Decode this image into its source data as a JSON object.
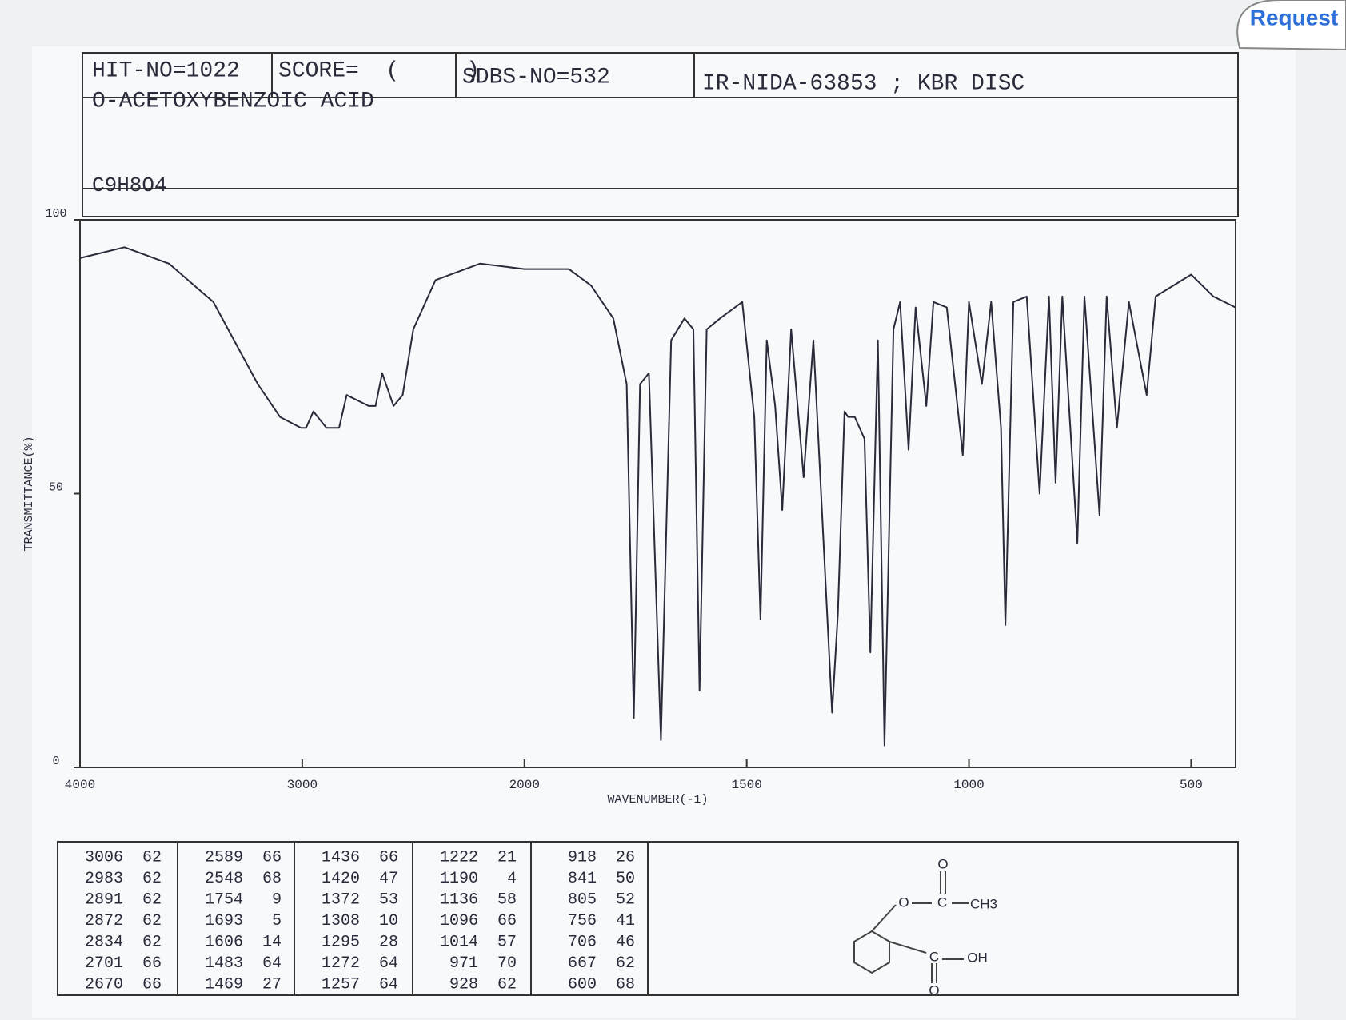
{
  "header": {
    "hit_no": "HIT-NO=1022",
    "score": "SCORE=  (     )",
    "sdbs_no": "SDBS-NO=532",
    "method": "IR-NIDA-63853 ; KBR DISC",
    "name": "O-ACETOXYBENZOIC ACID",
    "formula": "C9H8O4"
  },
  "button": "Request",
  "chart_data": {
    "type": "line",
    "x_label": "WAVENUMBER(-1)",
    "y_label": "TRANSMITTANCE(%)",
    "xlim": [
      4000,
      400
    ],
    "x_expand_below": 2000,
    "xticks": [
      4000,
      3000,
      2000,
      1500,
      1000,
      500
    ],
    "ylim": [
      0,
      100
    ],
    "yticks": [
      0,
      50,
      100
    ],
    "series": [
      {
        "name": "O-ACETOXYBENZOIC ACID",
        "color": "#2a2a3a",
        "x": [
          4000,
          3800,
          3600,
          3400,
          3200,
          3100,
          3006,
          2983,
          2950,
          2891,
          2872,
          2834,
          2800,
          2701,
          2670,
          2640,
          2589,
          2548,
          2500,
          2400,
          2200,
          2000,
          1900,
          1850,
          1800,
          1770,
          1754,
          1740,
          1720,
          1693,
          1670,
          1640,
          1620,
          1606,
          1590,
          1560,
          1510,
          1483,
          1469,
          1455,
          1436,
          1420,
          1400,
          1372,
          1350,
          1308,
          1295,
          1280,
          1272,
          1257,
          1235,
          1222,
          1205,
          1190,
          1170,
          1155,
          1136,
          1120,
          1096,
          1080,
          1050,
          1014,
          1000,
          971,
          950,
          928,
          918,
          900,
          870,
          841,
          820,
          805,
          790,
          756,
          740,
          706,
          690,
          667,
          640,
          600,
          580,
          500,
          450,
          400
        ],
        "values": [
          93,
          95,
          92,
          85,
          70,
          64,
          62,
          62,
          65,
          62,
          62,
          62,
          68,
          66,
          66,
          72,
          66,
          68,
          80,
          89,
          92,
          91,
          91,
          88,
          82,
          70,
          9,
          70,
          72,
          5,
          78,
          82,
          80,
          14,
          80,
          82,
          85,
          64,
          27,
          78,
          66,
          47,
          80,
          53,
          78,
          10,
          28,
          65,
          64,
          64,
          60,
          21,
          78,
          4,
          80,
          85,
          58,
          84,
          66,
          85,
          84,
          57,
          85,
          70,
          85,
          62,
          26,
          85,
          86,
          50,
          86,
          52,
          86,
          41,
          86,
          46,
          86,
          62,
          85,
          68,
          86,
          90,
          86,
          84
        ]
      }
    ]
  },
  "peak_table": [
    [
      3006,
      62
    ],
    [
      2983,
      62
    ],
    [
      2891,
      62
    ],
    [
      2872,
      62
    ],
    [
      2834,
      62
    ],
    [
      2701,
      66
    ],
    [
      2670,
      66
    ],
    [
      2589,
      66
    ],
    [
      2548,
      68
    ],
    [
      1754,
      9
    ],
    [
      1693,
      5
    ],
    [
      1606,
      14
    ],
    [
      1483,
      64
    ],
    [
      1469,
      27
    ],
    [
      1436,
      66
    ],
    [
      1420,
      47
    ],
    [
      1372,
      53
    ],
    [
      1308,
      10
    ],
    [
      1295,
      28
    ],
    [
      1272,
      64
    ],
    [
      1257,
      64
    ],
    [
      1222,
      21
    ],
    [
      1190,
      4
    ],
    [
      1136,
      58
    ],
    [
      1096,
      66
    ],
    [
      1014,
      57
    ],
    [
      971,
      70
    ],
    [
      928,
      62
    ],
    [
      918,
      26
    ],
    [
      841,
      50
    ],
    [
      805,
      52
    ],
    [
      756,
      41
    ],
    [
      706,
      46
    ],
    [
      667,
      62
    ],
    [
      600,
      68
    ]
  ],
  "structure": {
    "labels": [
      "O",
      "O",
      "C",
      "CH3",
      "C",
      "OH",
      "O"
    ]
  }
}
